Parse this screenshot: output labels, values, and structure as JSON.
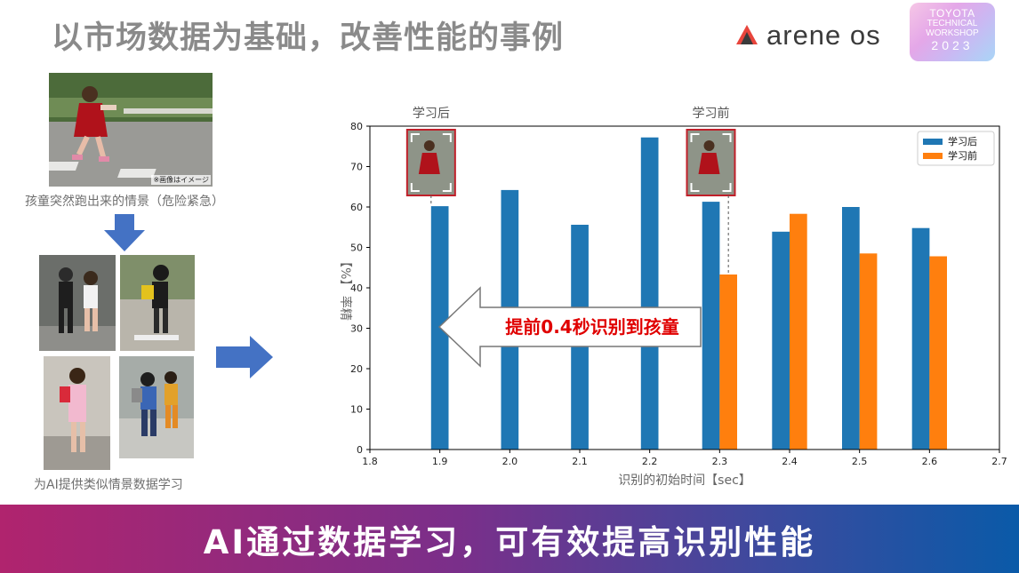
{
  "slide": {
    "title": "以市场数据为基础，改善性能的事例",
    "logo_arene": "arene os",
    "logo_workshop": [
      "TOYOTA",
      "TECHNICAL",
      "WORKSHOP",
      "2023"
    ],
    "photo_note": "※画像はイメージ",
    "caption_top": "孩童突然跑出来的情景（危险紧急）",
    "caption_bottom": "为AI提供类似情景数据学习",
    "banner": "AI通过数据学习，可有效提高识别性能",
    "colors": {
      "title": "#8a8a8a",
      "blue_arrow": "#4472c4",
      "callout_text": "#e00000",
      "banner_start": "#b0246e",
      "banner_end": "#0a5aa8"
    }
  },
  "chart_data": {
    "type": "bar",
    "xlabel": "识别的初始时间【sec】",
    "ylabel": "【%】 率精",
    "xlim": [
      1.8,
      2.7
    ],
    "ylim": [
      0,
      80
    ],
    "xticks": [
      1.8,
      1.9,
      2.0,
      2.1,
      2.2,
      2.3,
      2.4,
      2.5,
      2.6,
      2.7
    ],
    "xtick_labels": [
      "1.8",
      "1.9",
      "2.0",
      "2.1",
      "2.2",
      "2.3",
      "2.4",
      "2.5",
      "2.6",
      "2.7"
    ],
    "yticks": [
      0,
      10,
      20,
      30,
      40,
      50,
      60,
      70,
      80
    ],
    "grid": false,
    "legend": "top-right",
    "series": [
      {
        "name": "学习后",
        "color": "#1f77b4",
        "x": [
          1.9,
          2.0,
          2.1,
          2.2,
          2.3,
          2.4,
          2.5,
          2.6
        ],
        "values": [
          60.2,
          64.2,
          55.6,
          77.2,
          61.3,
          53.9,
          60.0,
          54.8
        ]
      },
      {
        "name": "学习前",
        "color": "#ff7f0e",
        "x": [
          2.3,
          2.4,
          2.5,
          2.6
        ],
        "values": [
          43.3,
          58.3,
          48.5,
          47.8
        ]
      }
    ],
    "annotations": {
      "marker_after": {
        "label": "学习后",
        "x": 1.9
      },
      "marker_before": {
        "label": "学习前",
        "x": 2.3
      },
      "callout": "提前0.4秒识别到孩童"
    }
  }
}
